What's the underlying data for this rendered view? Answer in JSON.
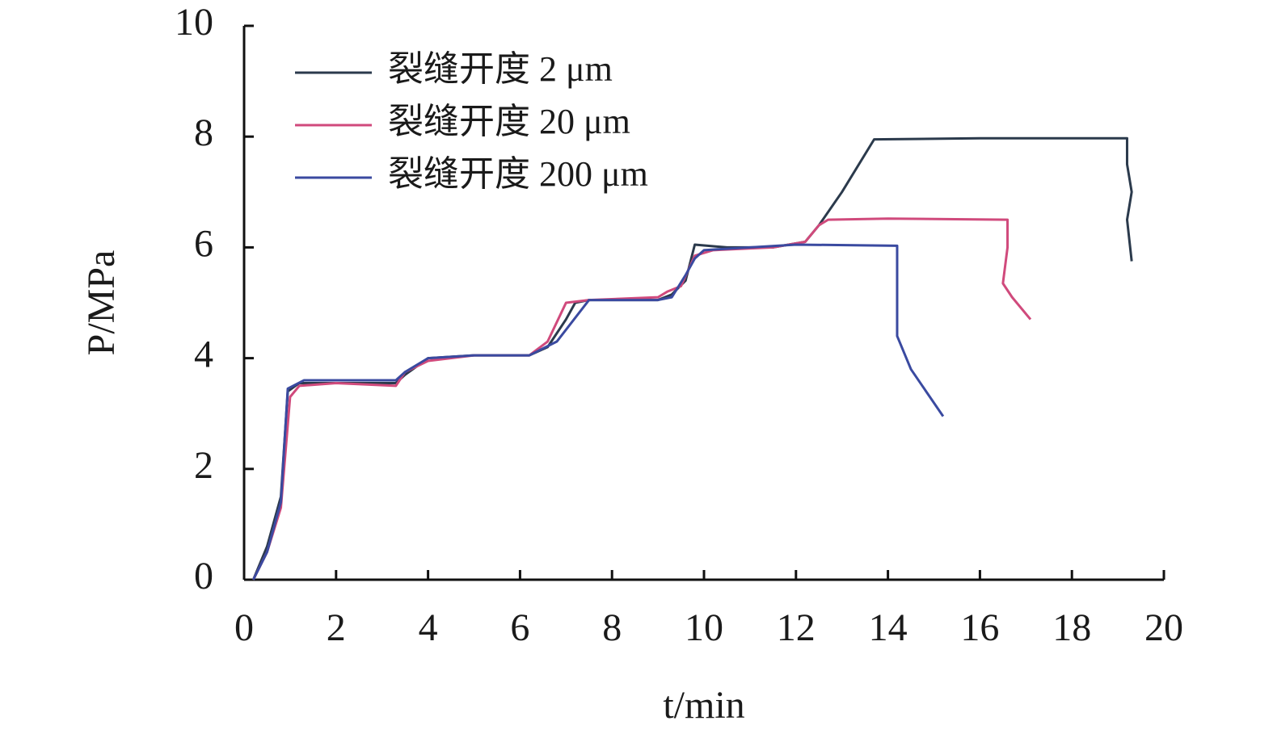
{
  "chart_data": {
    "type": "line",
    "x_label": "t/min",
    "y_label": "P/MPa",
    "xlim": [
      0,
      20
    ],
    "xticks": [
      0,
      2,
      4,
      6,
      8,
      10,
      12,
      14,
      16,
      18,
      20
    ],
    "ylim": [
      0,
      10
    ],
    "yticks": [
      0,
      2,
      4,
      6,
      8,
      10
    ],
    "grid": false,
    "legend": "upper left",
    "series": [
      {
        "name": "裂缝开度 2 μm",
        "color": "#2b3a4c",
        "x": [
          0.2,
          0.5,
          0.8,
          0.95,
          1.2,
          2,
          3.3,
          3.5,
          4,
          5,
          6.2,
          6.6,
          7,
          7.2,
          7.5,
          9,
          9.3,
          9.6,
          9.8,
          10.5,
          11.5,
          12.2,
          12.5,
          13,
          13.7,
          16,
          19.2,
          19.2,
          19.3,
          19.2,
          19.3
        ],
        "values": [
          0,
          0.6,
          1.5,
          3.4,
          3.55,
          3.55,
          3.55,
          3.7,
          4.0,
          4.05,
          4.05,
          4.2,
          4.7,
          5.0,
          5.05,
          5.05,
          5.15,
          5.4,
          6.05,
          6.0,
          6.0,
          6.1,
          6.4,
          7.0,
          7.95,
          7.97,
          7.97,
          7.5,
          7.0,
          6.5,
          5.75
        ]
      },
      {
        "name": "裂缝开度 20 μm",
        "color": "#d04a7c",
        "x": [
          0.2,
          0.5,
          0.8,
          1.0,
          1.2,
          2,
          3.3,
          3.5,
          4,
          5,
          6.2,
          6.6,
          7.0,
          7.5,
          9,
          9.2,
          9.5,
          9.8,
          10.2,
          11.5,
          12.2,
          12.5,
          12.7,
          14,
          16.6,
          16.6,
          16.5,
          16.7,
          17.1
        ],
        "values": [
          0,
          0.5,
          1.3,
          3.3,
          3.5,
          3.55,
          3.5,
          3.75,
          3.95,
          4.05,
          4.05,
          4.3,
          5.0,
          5.05,
          5.1,
          5.2,
          5.3,
          5.85,
          5.95,
          6.0,
          6.1,
          6.4,
          6.5,
          6.52,
          6.5,
          6.0,
          5.35,
          5.1,
          4.7
        ]
      },
      {
        "name": "裂缝开度 200 μm",
        "color": "#3a4aa0",
        "x": [
          0.2,
          0.5,
          0.8,
          0.95,
          1.3,
          2,
          3.3,
          3.5,
          4,
          5,
          6.2,
          6.8,
          7.5,
          9,
          9.3,
          9.6,
          9.8,
          10,
          12,
          14.2,
          14.2,
          14.2,
          14.5,
          15.2
        ],
        "values": [
          0,
          0.5,
          1.4,
          3.45,
          3.6,
          3.6,
          3.6,
          3.75,
          4.0,
          4.05,
          4.05,
          4.3,
          5.05,
          5.05,
          5.1,
          5.5,
          5.8,
          5.95,
          6.05,
          6.03,
          5.0,
          4.4,
          3.8,
          2.95
        ]
      }
    ]
  }
}
